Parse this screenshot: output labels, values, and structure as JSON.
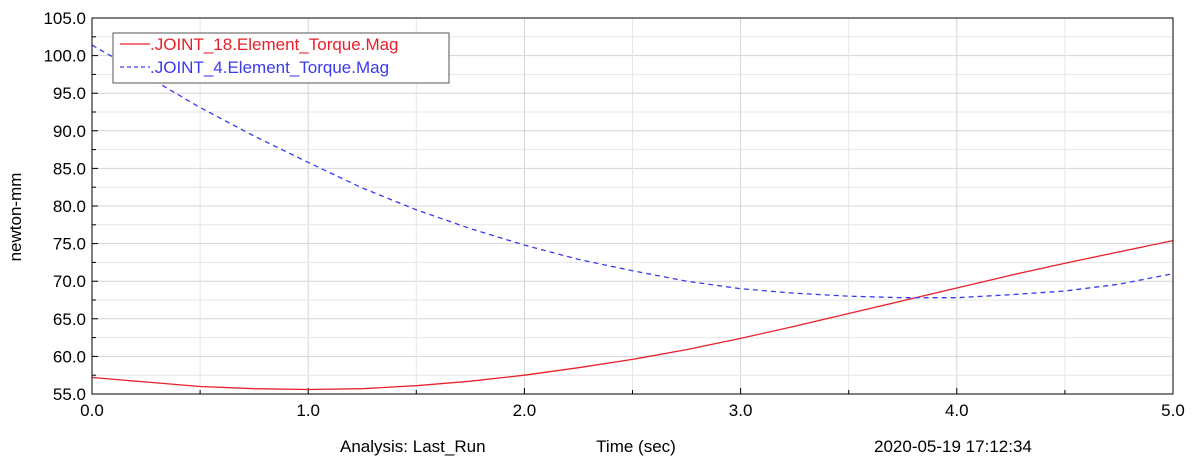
{
  "chart_data": {
    "type": "line",
    "xlabel": "Time (sec)",
    "ylabel": "newton-mm",
    "xlim": [
      0.0,
      5.0
    ],
    "ylim": [
      55.0,
      105.0
    ],
    "x_ticks": [
      "0.0",
      "1.0",
      "2.0",
      "3.0",
      "4.0",
      "5.0"
    ],
    "y_ticks": [
      "55.0",
      "60.0",
      "65.0",
      "70.0",
      "75.0",
      "80.0",
      "85.0",
      "90.0",
      "95.0",
      "100.0",
      "105.0"
    ],
    "grid": true,
    "legend_position": "top-left",
    "series": [
      {
        "name": ".JOINT_18.Element_Torque.Mag",
        "color": "#e8202a",
        "style": "solid",
        "x": [
          0.0,
          0.25,
          0.5,
          0.75,
          1.0,
          1.25,
          1.5,
          1.75,
          2.0,
          2.25,
          2.5,
          2.75,
          3.0,
          3.25,
          3.5,
          3.75,
          4.0,
          4.25,
          4.5,
          4.75,
          5.0
        ],
        "y": [
          57.2,
          56.6,
          56.0,
          55.7,
          55.6,
          55.7,
          56.1,
          56.7,
          57.5,
          58.5,
          59.6,
          60.9,
          62.4,
          64.0,
          65.7,
          67.4,
          69.1,
          70.8,
          72.4,
          73.9,
          75.4
        ]
      },
      {
        "name": ".JOINT_4.Element_Torque.Mag",
        "color": "#3a3af0",
        "style": "dashed",
        "x": [
          0.0,
          0.25,
          0.5,
          0.75,
          1.0,
          1.25,
          1.5,
          1.75,
          2.0,
          2.25,
          2.5,
          2.75,
          3.0,
          3.25,
          3.5,
          3.75,
          4.0,
          4.25,
          4.5,
          4.75,
          5.0
        ],
        "y": [
          101.4,
          97.3,
          93.1,
          89.3,
          85.8,
          82.4,
          79.5,
          77.0,
          74.8,
          72.9,
          71.4,
          70.0,
          69.0,
          68.4,
          68.0,
          67.8,
          67.8,
          68.2,
          68.7,
          69.6,
          71.0
        ]
      }
    ]
  },
  "footer": {
    "analysis": "Analysis:  Last_Run",
    "timestamp": "2020-05-19 17:12:34"
  }
}
